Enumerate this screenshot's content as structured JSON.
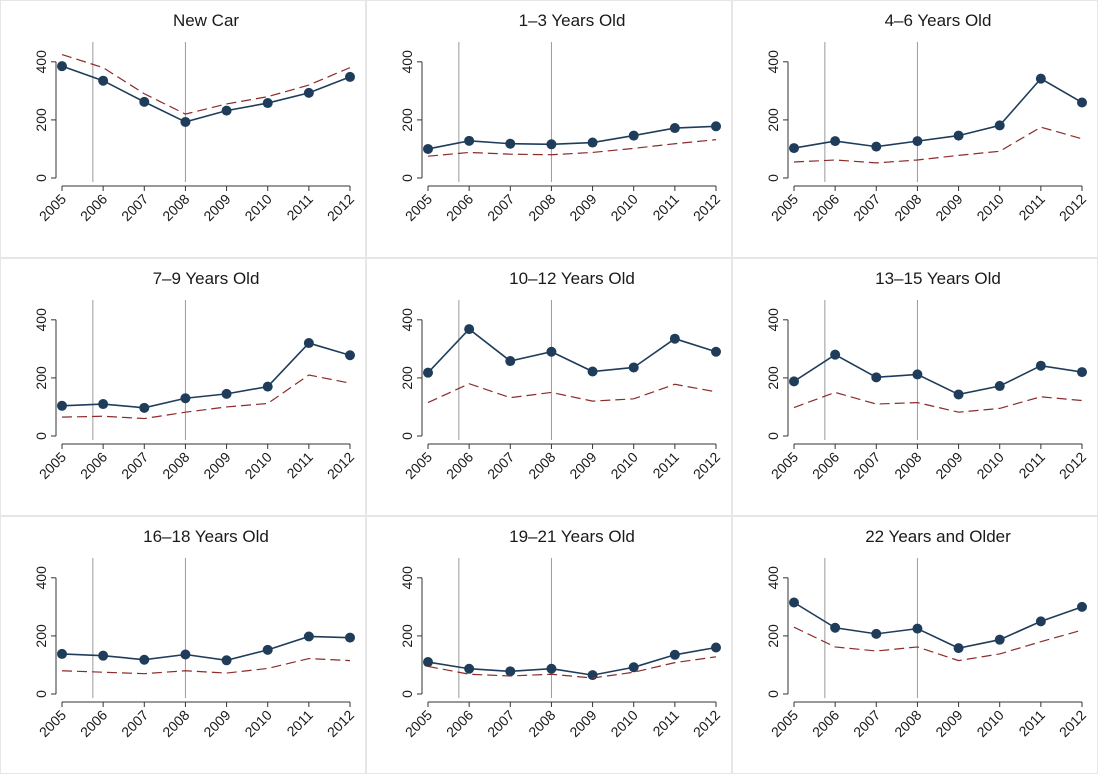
{
  "chart_data": {
    "type": "line",
    "layout": "3x3 small multiples",
    "x": [
      "2005",
      "2006",
      "2007",
      "2008",
      "2009",
      "2010",
      "2011",
      "2012"
    ],
    "y_ticks": [
      "0",
      "200",
      "400"
    ],
    "ylim": [
      0,
      420
    ],
    "reference_lines_x": [
      2005.75,
      2008
    ],
    "colors": {
      "solid": "#1f3d5a",
      "dashed": "#8b2b2b",
      "reference": "#9a9a9a"
    },
    "panels": [
      {
        "title": "New Car",
        "series": [
          {
            "style": "solid-markers",
            "values": [
              385,
              335,
              262,
              193,
              232,
              258,
              293,
              348
            ]
          },
          {
            "style": "dashed",
            "values": [
              425,
              380,
              290,
              220,
              255,
              280,
              320,
              380
            ]
          }
        ]
      },
      {
        "title": "1–3 Years Old",
        "series": [
          {
            "style": "solid-markers",
            "values": [
              100,
              128,
              118,
              116,
              122,
              146,
              172,
              178
            ]
          },
          {
            "style": "dashed",
            "values": [
              75,
              88,
              82,
              80,
              88,
              102,
              118,
              132
            ]
          }
        ]
      },
      {
        "title": "4–6 Years Old",
        "series": [
          {
            "style": "solid-markers",
            "values": [
              103,
              127,
              108,
              127,
              146,
              181,
              342,
              260
            ]
          },
          {
            "style": "dashed",
            "values": [
              55,
              62,
              52,
              62,
              78,
              92,
              175,
              135
            ]
          }
        ]
      },
      {
        "title": "7–9 Years Old",
        "series": [
          {
            "style": "solid-markers",
            "values": [
              104,
              110,
              97,
              130,
              145,
              170,
              320,
              278
            ]
          },
          {
            "style": "dashed",
            "values": [
              65,
              68,
              60,
              82,
              100,
              112,
              210,
              182
            ]
          }
        ]
      },
      {
        "title": "10–12 Years Old",
        "series": [
          {
            "style": "solid-markers",
            "values": [
              218,
              368,
              258,
              290,
              222,
              236,
              335,
              290
            ]
          },
          {
            "style": "dashed",
            "values": [
              115,
              180,
              132,
              150,
              120,
              128,
              178,
              152
            ]
          }
        ]
      },
      {
        "title": "13–15 Years Old",
        "series": [
          {
            "style": "solid-markers",
            "values": [
              188,
              280,
              202,
              212,
              143,
              172,
              242,
              220
            ]
          },
          {
            "style": "dashed",
            "values": [
              98,
              150,
              110,
              115,
              82,
              95,
              135,
              122
            ]
          }
        ]
      },
      {
        "title": "16–18 Years Old",
        "series": [
          {
            "style": "solid-markers",
            "values": [
              138,
              132,
              118,
              136,
              116,
              152,
              198,
              194
            ]
          },
          {
            "style": "dashed",
            "values": [
              80,
              75,
              70,
              80,
              72,
              88,
              122,
              115
            ]
          }
        ]
      },
      {
        "title": "19–21 Years Old",
        "series": [
          {
            "style": "solid-markers",
            "values": [
              110,
              87,
              78,
              87,
              65,
              92,
              135,
              160
            ]
          },
          {
            "style": "dashed",
            "values": [
              95,
              68,
              62,
              68,
              55,
              75,
              108,
              128
            ]
          }
        ]
      },
      {
        "title": "22 Years and Older",
        "series": [
          {
            "style": "solid-markers",
            "values": [
              315,
              228,
              207,
              225,
              158,
              187,
              250,
              300
            ]
          },
          {
            "style": "dashed",
            "values": [
              230,
              162,
              148,
              162,
              115,
              138,
              180,
              220
            ]
          }
        ]
      }
    ]
  }
}
